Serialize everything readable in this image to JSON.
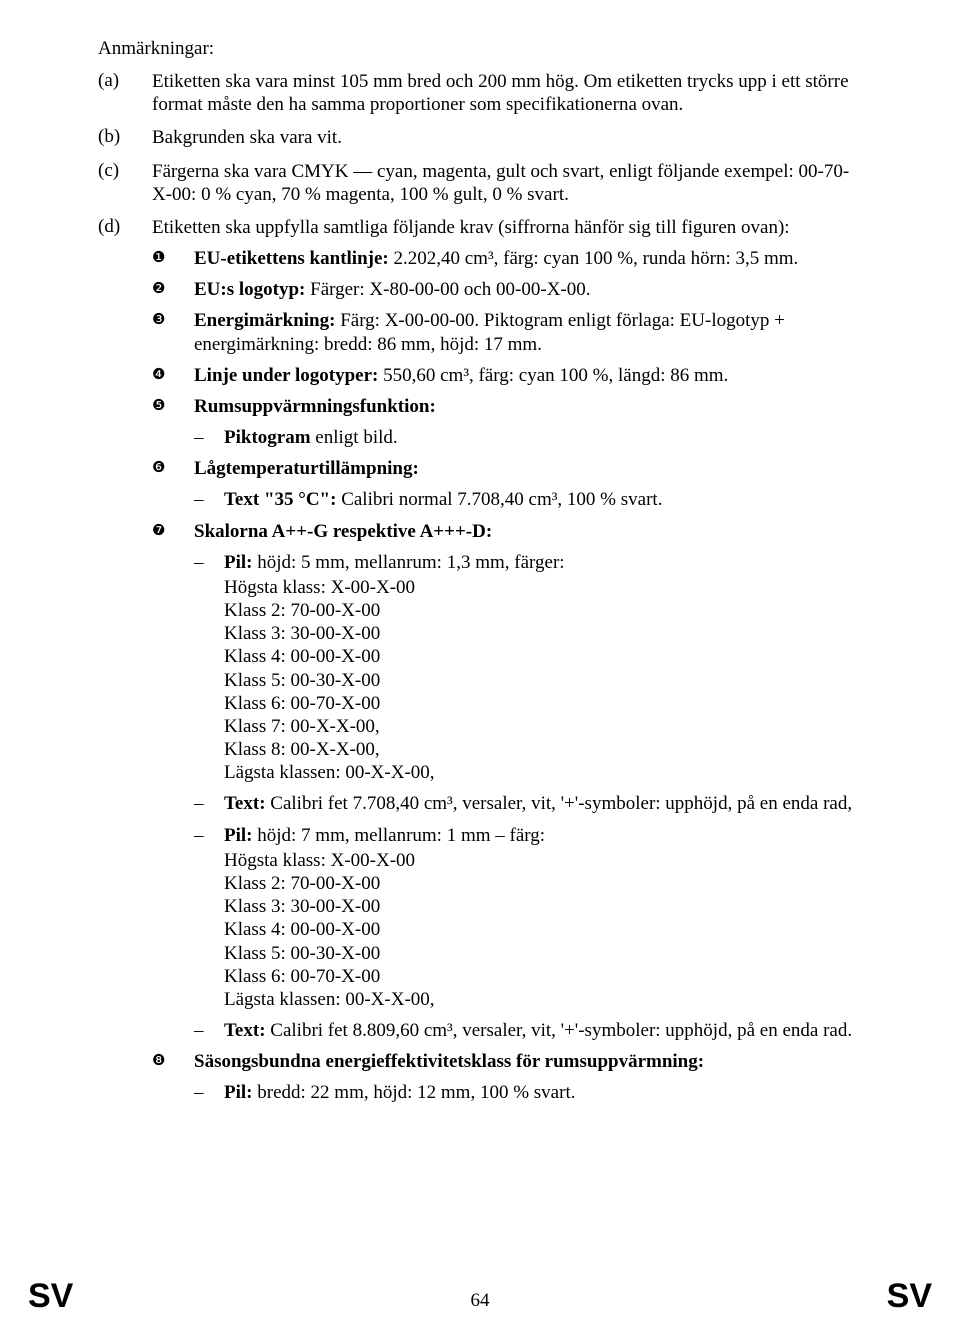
{
  "title": "Anmärkningar:",
  "letters": {
    "a": {
      "label": "(a)",
      "text": "Etiketten ska vara minst 105 mm bred och 200 mm hög. Om etiketten trycks upp i ett större format måste den ha samma proportioner som specifikationerna ovan."
    },
    "b": {
      "label": "(b)",
      "text": "Bakgrunden ska vara vit."
    },
    "c": {
      "label": "(c)",
      "text": "Färgerna ska vara CMYK — cyan, magenta, gult och svart, enligt följande exempel: 00-70-X-00: 0 % cyan, 70 % magenta, 100 % gult, 0 % svart."
    },
    "d": {
      "label": "(d)",
      "text": "Etiketten ska uppfylla samtliga följande krav (siffrorna hänför sig till figuren ovan):"
    }
  },
  "nums": {
    "n1": {
      "bullet": "❶",
      "bold": "EU-etikettens kantlinje:",
      "rest": " 2.202,40 cm³, färg: cyan 100 %, runda hörn: 3,5 mm."
    },
    "n2": {
      "bullet": "❷",
      "bold": "EU:s logotyp:",
      "rest": " Färger: X-80-00-00 och 00-00-X-00."
    },
    "n3": {
      "bullet": "❸",
      "bold": "Energimärkning:",
      "rest": " Färg: X-00-00-00. Piktogram enligt förlaga: EU-logotyp + energimärkning: bredd: 86 mm, höjd: 17 mm."
    },
    "n4": {
      "bullet": "❹",
      "bold": "Linje under logotyper:",
      "rest": " 550,60 cm³, färg: cyan 100 %, längd: 86 mm."
    },
    "n5": {
      "bullet": "❺",
      "bold": "Rumsuppvärmningsfunktion:"
    },
    "n5d1": {
      "bold": "Piktogram",
      "rest": " enligt bild."
    },
    "n6": {
      "bullet": "❻",
      "bold": "Lågtemperaturtillämpning:"
    },
    "n6d1": {
      "bold": "Text \"35 °C\":",
      "rest": " Calibri normal 7.708,40 cm³, 100 % svart."
    },
    "n7": {
      "bullet": "❼",
      "bold": "Skalorna A++-G respektive A+++-D:"
    },
    "n7d1": {
      "bold": "Pil:",
      "rest": " höjd: 5 mm, mellanrum: 1,3 mm, färger:",
      "lines": [
        "Högsta klass: X-00-X-00",
        "Klass 2: 70-00-X-00",
        "Klass 3: 30-00-X-00",
        "Klass 4: 00-00-X-00",
        "Klass 5: 00-30-X-00",
        "Klass 6: 00-70-X-00",
        "Klass 7: 00-X-X-00,",
        "Klass 8: 00-X-X-00,",
        "Lägsta klassen: 00-X-X-00,"
      ]
    },
    "n7d2": {
      "bold": "Text:",
      "rest": " Calibri fet 7.708,40 cm³, versaler, vit, '+'-symboler: upphöjd, på en enda rad,"
    },
    "n7d3": {
      "bold": "Pil:",
      "rest": " höjd: 7 mm, mellanrum: 1 mm – färg:",
      "lines": [
        "Högsta klass: X-00-X-00",
        "Klass 2: 70-00-X-00",
        "Klass 3: 30-00-X-00",
        "Klass 4: 00-00-X-00",
        "Klass 5: 00-30-X-00",
        "Klass 6: 00-70-X-00",
        "Lägsta klassen: 00-X-X-00,"
      ]
    },
    "n7d4": {
      "bold": "Text:",
      "rest": " Calibri fet 8.809,60 cm³, versaler, vit, '+'-symboler: upphöjd, på en enda rad."
    },
    "n8": {
      "bullet": "❽",
      "bold": "Säsongsbundna energieffektivitetsklass för rumsuppvärmning:"
    },
    "n8d1": {
      "bold": "Pil:",
      "rest": " bredd: 22 mm, höjd: 12 mm, 100 % svart."
    }
  },
  "footer": {
    "left": "SV",
    "page": "64",
    "right": "SV"
  }
}
